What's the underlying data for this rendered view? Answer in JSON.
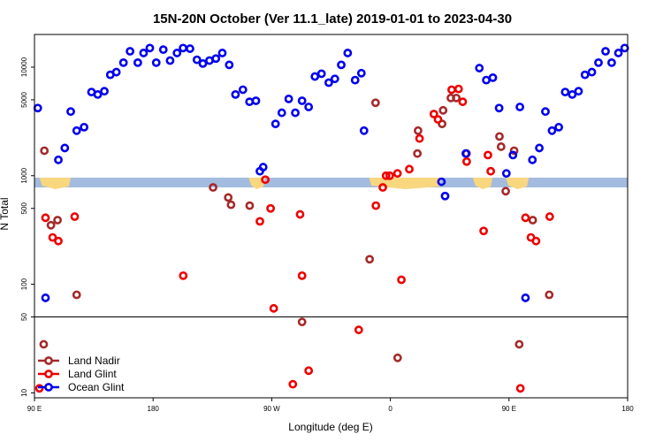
{
  "chart_data": {
    "type": "scatter",
    "title": "15N-20N October (Ver 11.1_late)   2019-01-01 to 2023-04-30",
    "xlabel": "Longitude (deg E)",
    "ylabel": "N Total",
    "xlim": [
      0,
      360
    ],
    "ylim": [
      9,
      20000
    ],
    "yscale": "log",
    "x_ticks": [
      {
        "value": 0,
        "label": "90 E"
      },
      {
        "value": 72,
        "label": "180"
      },
      {
        "value": 144,
        "label": "90 W"
      },
      {
        "value": 216,
        "label": "0"
      },
      {
        "value": 288,
        "label": "90 E"
      },
      {
        "value": 360,
        "label": "180"
      }
    ],
    "y_ticks": [
      {
        "value": 10,
        "label": "10"
      },
      {
        "value": 50,
        "label": "50"
      },
      {
        "value": 100,
        "label": "100"
      },
      {
        "value": 500,
        "label": "500"
      },
      {
        "value": 1000,
        "label": "1000"
      },
      {
        "value": 5000,
        "label": "5000"
      },
      {
        "value": 10000,
        "label": "10000"
      }
    ],
    "reference_line_y": 50,
    "map_strip_y": [
      780,
      960
    ],
    "map_colors": {
      "ocean": "#a3bbdf",
      "land": "#f9d77e"
    },
    "legend_position": "bottom-left",
    "series": [
      {
        "name": "Land Nadir",
        "color": "#a52a2a",
        "points": [
          [
            5.6,
            28
          ],
          [
            6.0,
            1700
          ],
          [
            10,
            350
          ],
          [
            14,
            390
          ],
          [
            25.6,
            80
          ],
          [
            108.4,
            780
          ],
          [
            117.6,
            630
          ],
          [
            119.3,
            540
          ],
          [
            130.6,
            530
          ],
          [
            162.4,
            45
          ],
          [
            203.4,
            170
          ],
          [
            207,
            4700
          ],
          [
            220.4,
            21
          ],
          [
            232.8,
            2600
          ],
          [
            232.4,
            1600
          ],
          [
            247.4,
            3000
          ],
          [
            248,
            4000
          ],
          [
            252.7,
            5200
          ],
          [
            256,
            5200
          ],
          [
            262.2,
            1600
          ],
          [
            282.2,
            2300
          ],
          [
            283.2,
            1850
          ],
          [
            286,
            720
          ],
          [
            291.1,
            1700
          ],
          [
            294.2,
            28
          ],
          [
            302.4,
            390
          ],
          [
            312.4,
            80
          ]
        ]
      },
      {
        "name": "Land Glint",
        "color": "#ee0000",
        "points": [
          [
            3.0,
            11
          ],
          [
            6.7,
            410
          ],
          [
            11.0,
            270
          ],
          [
            14.5,
            250
          ],
          [
            24.4,
            420
          ],
          [
            90.3,
            120
          ],
          [
            136.8,
            380
          ],
          [
            140.1,
            920
          ],
          [
            143.3,
            500
          ],
          [
            145.2,
            60
          ],
          [
            161.2,
            440
          ],
          [
            162.4,
            120
          ],
          [
            166.4,
            16
          ],
          [
            156.8,
            12
          ],
          [
            196.8,
            38
          ],
          [
            207.2,
            530
          ],
          [
            211.4,
            780
          ],
          [
            213.4,
            1000
          ],
          [
            215.6,
            1000
          ],
          [
            220.3,
            1050
          ],
          [
            222.7,
            110
          ],
          [
            227.5,
            1150
          ],
          [
            233.7,
            2200
          ],
          [
            242.4,
            3700
          ],
          [
            244.9,
            3300
          ],
          [
            253.2,
            6200
          ],
          [
            257.4,
            6300
          ],
          [
            259.9,
            4800
          ],
          [
            262.3,
            1350
          ],
          [
            272.6,
            310
          ],
          [
            275.2,
            1550
          ],
          [
            276.9,
            1100
          ],
          [
            294.9,
            11
          ],
          [
            298.0,
            410
          ],
          [
            301.3,
            270
          ],
          [
            304.4,
            250
          ],
          [
            312.7,
            420
          ]
        ]
      },
      {
        "name": "Ocean Glint",
        "color": "#0000ee",
        "points": [
          [
            2.0,
            4200
          ],
          [
            6.7,
            75
          ],
          [
            14.5,
            1400
          ],
          [
            18.4,
            1800
          ],
          [
            22.0,
            3900
          ],
          [
            25.6,
            2600
          ],
          [
            30.1,
            2800
          ],
          [
            34.6,
            5900
          ],
          [
            38.4,
            5600
          ],
          [
            42.4,
            6000
          ],
          [
            46.0,
            8500
          ],
          [
            49.7,
            9000
          ],
          [
            54.0,
            11000
          ],
          [
            58.0,
            14000
          ],
          [
            62.7,
            11000
          ],
          [
            66.2,
            13500
          ],
          [
            70.0,
            15000
          ],
          [
            73.9,
            11000
          ],
          [
            78.2,
            14500
          ],
          [
            82.3,
            11500
          ],
          [
            86.5,
            13500
          ],
          [
            90.2,
            15000
          ],
          [
            94.4,
            14800
          ],
          [
            98.6,
            11700
          ],
          [
            102.2,
            10800
          ],
          [
            106.2,
            11500
          ],
          [
            110.1,
            12000
          ],
          [
            114.0,
            13500
          ],
          [
            118.2,
            10500
          ],
          [
            122.0,
            5600
          ],
          [
            126.5,
            6200
          ],
          [
            130.5,
            4800
          ],
          [
            134.4,
            4900
          ],
          [
            136.8,
            1100
          ],
          [
            138.8,
            1200
          ],
          [
            146.3,
            3000
          ],
          [
            150.1,
            3800
          ],
          [
            154.3,
            5100
          ],
          [
            158.3,
            3800
          ],
          [
            162.4,
            4900
          ],
          [
            166.4,
            4300
          ],
          [
            170.2,
            8200
          ],
          [
            174.2,
            8700
          ],
          [
            178.6,
            7200
          ],
          [
            182.3,
            7800
          ],
          [
            186.2,
            10500
          ],
          [
            190.1,
            13500
          ],
          [
            194.6,
            7600
          ],
          [
            198.4,
            8800
          ],
          [
            200.0,
            2600
          ],
          [
            247.0,
            880
          ],
          [
            249.2,
            650
          ],
          [
            261.8,
            1600
          ],
          [
            270.0,
            9800
          ],
          [
            274.2,
            7600
          ],
          [
            278.2,
            8000
          ],
          [
            282.0,
            4200
          ],
          [
            286.4,
            1050
          ],
          [
            290.4,
            1550
          ],
          [
            294.6,
            4300
          ],
          [
            298.0,
            75
          ],
          [
            302.2,
            1400
          ],
          [
            306.4,
            1800
          ],
          [
            310.1,
            3900
          ],
          [
            314.1,
            2600
          ],
          [
            318.2,
            2800
          ],
          [
            322.1,
            5900
          ],
          [
            326.4,
            5600
          ],
          [
            330.2,
            6000
          ],
          [
            334.1,
            8500
          ],
          [
            338.3,
            9000
          ],
          [
            342.3,
            11000
          ],
          [
            346.6,
            14000
          ],
          [
            350.3,
            11000
          ],
          [
            354.4,
            13500
          ],
          [
            358.2,
            15000
          ]
        ]
      }
    ]
  },
  "legend": {
    "items": [
      {
        "label": "Land Nadir",
        "color": "#a52a2a"
      },
      {
        "label": "Land Glint",
        "color": "#ee0000"
      },
      {
        "label": "Ocean Glint",
        "color": "#0000ee"
      }
    ]
  }
}
